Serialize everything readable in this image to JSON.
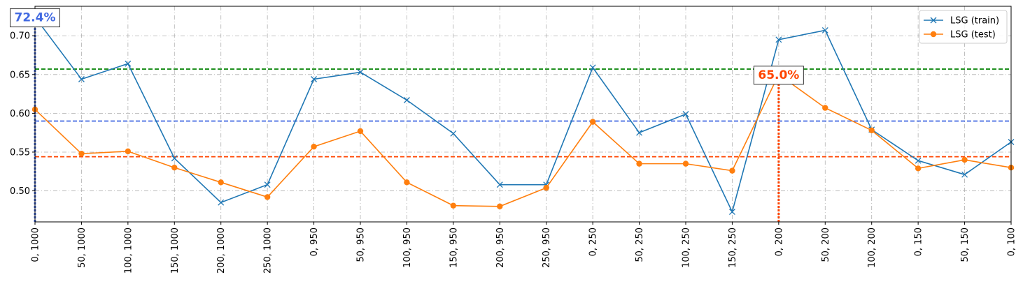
{
  "chart_data": {
    "type": "line",
    "categories": [
      "0, 1000",
      "50, 1000",
      "100, 1000",
      "150, 1000",
      "200, 1000",
      "250, 1000",
      "0, 950",
      "50, 950",
      "100, 950",
      "150, 950",
      "200, 950",
      "250, 950",
      "0, 250",
      "50, 250",
      "100, 250",
      "150, 250",
      "0, 200",
      "50, 200",
      "100, 200",
      "0, 150",
      "50, 150",
      "0, 100"
    ],
    "series": [
      {
        "name": "LSG (train)",
        "color": "#1f77b4",
        "marker": "x",
        "values": [
          0.724,
          0.644,
          0.664,
          0.542,
          0.485,
          0.508,
          0.644,
          0.653,
          0.617,
          0.574,
          0.508,
          0.508,
          0.659,
          0.575,
          0.599,
          0.473,
          0.695,
          0.707,
          0.579,
          0.539,
          0.521,
          0.563
        ]
      },
      {
        "name": "LSG (test)",
        "color": "#ff7f0e",
        "marker": "o",
        "values": [
          0.605,
          0.548,
          0.551,
          0.53,
          0.511,
          0.492,
          0.557,
          0.577,
          0.511,
          0.481,
          0.48,
          0.504,
          0.589,
          0.535,
          0.535,
          0.526,
          0.65,
          0.607,
          0.578,
          0.529,
          0.54,
          0.53
        ]
      }
    ],
    "hlines": [
      {
        "value": 0.657,
        "color": "#008000"
      },
      {
        "value": 0.59,
        "color": "#4169e1"
      },
      {
        "value": 0.544,
        "color": "#ff4500"
      }
    ],
    "vlines": [
      {
        "category_index": 0,
        "from": 0.46,
        "to": 0.724,
        "color": "#4169e1"
      },
      {
        "category_index": 16,
        "from": 0.46,
        "to": 0.65,
        "color": "#ff4500"
      }
    ],
    "annotations": [
      {
        "text": "72.4%",
        "category_index": 0,
        "value": 0.724,
        "color": "#4169e1"
      },
      {
        "text": "65.0%",
        "category_index": 16,
        "value": 0.65,
        "color": "#ff4500"
      }
    ],
    "yticks": [
      0.5,
      0.55,
      0.6,
      0.65,
      0.7
    ],
    "ytick_labels": [
      "0.50",
      "0.55",
      "0.60",
      "0.65",
      "0.70"
    ],
    "ylim": [
      0.46,
      0.738
    ],
    "xlabel": "",
    "ylabel": "",
    "title": "",
    "grid": true,
    "legend_position": "top-right"
  }
}
